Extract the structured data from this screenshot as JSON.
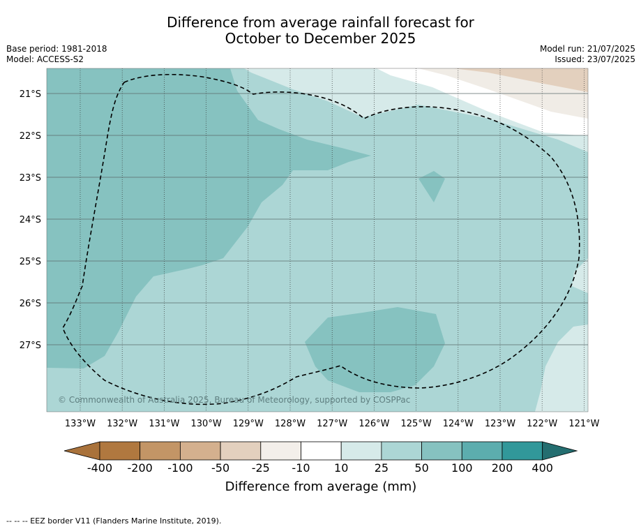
{
  "title": {
    "line1": "Difference from average rainfall forecast for",
    "line2": "October to December 2025"
  },
  "meta": {
    "base_period": "Base period: 1981-2018",
    "model": "Model: ACCESS-S2",
    "model_run": "Model run: 21/07/2025",
    "issued": "Issued: 23/07/2025"
  },
  "map": {
    "lon_ticks": [
      "133°W",
      "132°W",
      "131°W",
      "130°W",
      "129°W",
      "128°W",
      "127°W",
      "126°W",
      "125°W",
      "124°W",
      "123°W",
      "122°W",
      "121°W"
    ],
    "lat_ticks": [
      "21°S",
      "22°S",
      "23°S",
      "24°S",
      "25°S",
      "26°S",
      "27°S"
    ],
    "copyright": "© Commonwealth of Australia 2025, Bureau of Meteorology, supported by COSPPac",
    "colors": {
      "c10_25": "#d6eae9",
      "c25_50": "#acd6d5",
      "c50_100": "#86c2c0",
      "c_m25_m10": "#f0ece6",
      "c_m50_m25": "#e3d0be"
    }
  },
  "colorbar": {
    "ticks": [
      "-400",
      "-200",
      "-100",
      "-50",
      "-25",
      "-10",
      "10",
      "25",
      "50",
      "100",
      "200",
      "400"
    ],
    "colors": [
      "#a9723b",
      "#b0783f",
      "#c39566",
      "#d4b08e",
      "#e3d0be",
      "#f3efea",
      "#ffffff",
      "#d6eae9",
      "#acd6d5",
      "#86c2c0",
      "#5cadae",
      "#31989a",
      "#246e70"
    ],
    "label": "Difference from average (mm)"
  },
  "footnote": "-- -- -- EEZ border V11 (Flanders Marine Institute, 2019)."
}
